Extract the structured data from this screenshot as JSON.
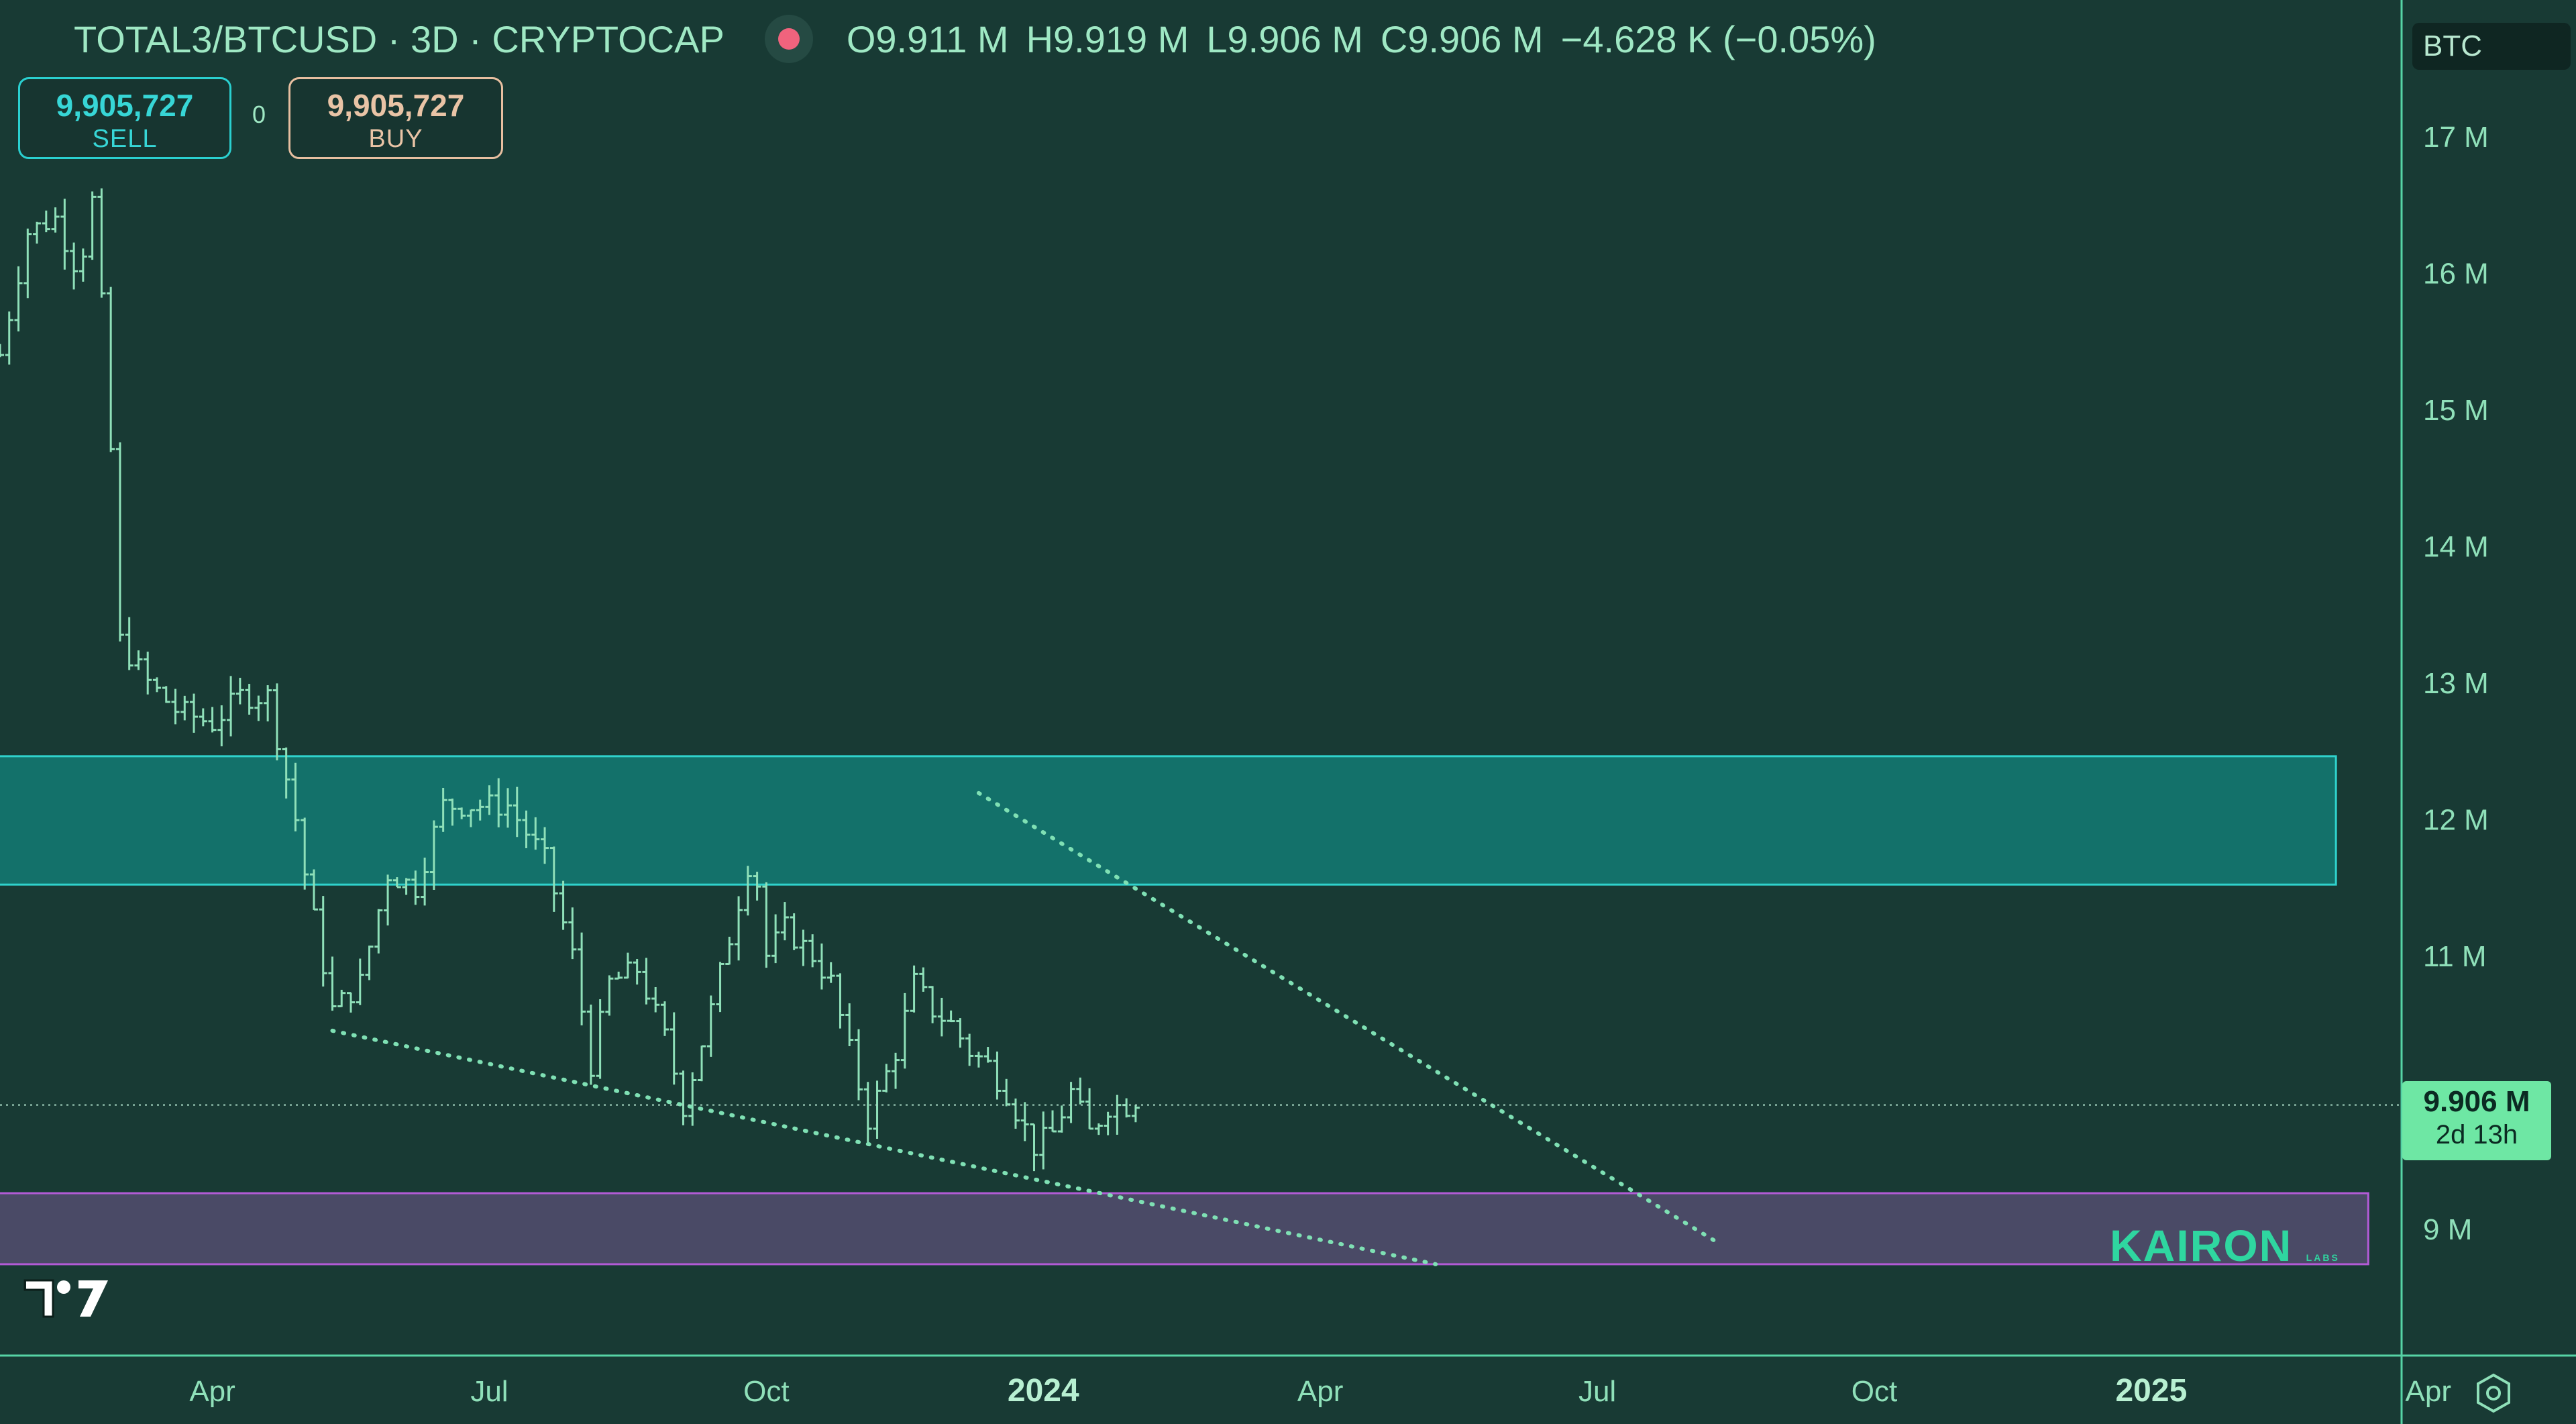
{
  "header": {
    "symbol": "TOTAL3/BTCUSD · 3D · CRYPTOCAP",
    "open": "O9.911 M",
    "high": "H9.919 M",
    "low": "L9.906 M",
    "close": "C9.906 M",
    "change": "−4.628 K (−0.05%)"
  },
  "trade": {
    "sell_price": "9,905,727",
    "sell_label": "SELL",
    "spread": "0",
    "buy_price": "9,905,727",
    "buy_label": "BUY"
  },
  "currency": "BTC",
  "last_price": {
    "value": "9.906 M",
    "countdown": "2d 13h"
  },
  "watermark": "KAIRON",
  "watermark_sub": "LABS",
  "icons": {
    "logo": "tradingview-logo-icon",
    "settings": "settings-icon",
    "record": "record-dot-icon"
  },
  "colors": {
    "background": "#183a34",
    "bars": "#8fe0b9",
    "resistance_zone": "#13716a",
    "support_zone": "#4a4a66",
    "trendline": "#7fe0b4",
    "last_price": "#6ee7a4"
  },
  "chart_data": {
    "type": "ohlc",
    "ylim": [
      8.1,
      17.6
    ],
    "y_ticks": [
      9,
      10,
      11,
      12,
      13,
      14,
      15,
      16,
      17
    ],
    "y_tick_labels": [
      "9 M",
      "",
      "11 M",
      "12 M",
      "13 M",
      "14 M",
      "15 M",
      "16 M",
      "17 M"
    ],
    "y_unit": "M",
    "x_ticks": [
      {
        "label": "Apr",
        "month": 3,
        "bold": false
      },
      {
        "label": "Jul",
        "month": 6,
        "bold": false
      },
      {
        "label": "Oct",
        "month": 9,
        "bold": false
      },
      {
        "label": "2024",
        "month": 12,
        "bold": true
      },
      {
        "label": "Apr",
        "month": 15,
        "bold": false
      },
      {
        "label": "Jul",
        "month": 18,
        "bold": false
      },
      {
        "label": "Oct",
        "month": 21,
        "bold": false
      },
      {
        "label": "2025",
        "month": 24,
        "bold": true
      },
      {
        "label": "Apr",
        "month": 27,
        "bold": false
      }
    ],
    "xlim": [
      0.7,
      28.6
    ],
    "anchors": [
      [
        0.7,
        15.4
      ],
      [
        1.0,
        16.3
      ],
      [
        1.3,
        16.4
      ],
      [
        1.55,
        16.0
      ],
      [
        1.75,
        16.7
      ],
      [
        1.83,
        15.2
      ],
      [
        1.9,
        14.7
      ],
      [
        2.0,
        13.3
      ],
      [
        2.3,
        13.0
      ],
      [
        2.6,
        12.8
      ],
      [
        3.0,
        12.7
      ],
      [
        3.3,
        12.9
      ],
      [
        3.6,
        12.9
      ],
      [
        3.9,
        12.0
      ],
      [
        4.0,
        11.6
      ],
      [
        4.3,
        10.6
      ],
      [
        4.6,
        10.8
      ],
      [
        4.9,
        11.6
      ],
      [
        5.2,
        11.5
      ],
      [
        5.5,
        12.1
      ],
      [
        5.8,
        12.1
      ],
      [
        6.2,
        12.1
      ],
      [
        6.6,
        11.7
      ],
      [
        6.9,
        11.0
      ],
      [
        7.1,
        10.2
      ],
      [
        7.3,
        10.8
      ],
      [
        7.6,
        10.9
      ],
      [
        7.9,
        10.4
      ],
      [
        8.1,
        9.9
      ],
      [
        8.4,
        10.6
      ],
      [
        8.7,
        11.4
      ],
      [
        8.85,
        11.8
      ],
      [
        9.0,
        11.0
      ],
      [
        9.2,
        11.2
      ],
      [
        9.5,
        11.0
      ],
      [
        9.7,
        10.8
      ],
      [
        9.9,
        10.3
      ],
      [
        10.1,
        9.8
      ],
      [
        10.4,
        10.3
      ],
      [
        10.6,
        10.8
      ],
      [
        10.8,
        10.6
      ],
      [
        11.0,
        10.5
      ],
      [
        11.2,
        10.3
      ],
      [
        11.4,
        10.2
      ],
      [
        11.6,
        10.0
      ],
      [
        11.9,
        9.6
      ],
      [
        12.1,
        9.7
      ],
      [
        12.3,
        10.0
      ],
      [
        12.5,
        9.7
      ],
      [
        12.7,
        9.9
      ],
      [
        12.9,
        9.9
      ],
      [
        13.0,
        9.95
      ]
    ],
    "zones": [
      {
        "name": "resistance",
        "from": 11.52,
        "to": 12.46,
        "x_end": 26.0
      },
      {
        "name": "support",
        "from": 8.74,
        "to": 9.26,
        "x_end": 26.35
      }
    ],
    "trendlines": [
      {
        "x1": 4.3,
        "y1": 10.45,
        "x2": 16.25,
        "y2": 8.74
      },
      {
        "x1": 11.3,
        "y1": 12.19,
        "x2": 19.3,
        "y2": 8.9
      }
    ],
    "last_price": 9.906
  }
}
